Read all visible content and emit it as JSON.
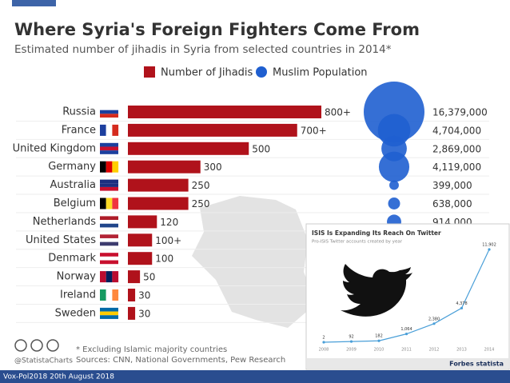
{
  "chart_data": [
    {
      "type": "bar",
      "title": "Where Syria's Foreign Fighters Come From",
      "subtitle": "Estimated number of jihadis in Syria from selected countries in 2014*",
      "categories": [
        "Russia",
        "France",
        "United Kingdom",
        "Germany",
        "Australia",
        "Belgium",
        "Netherlands",
        "United States",
        "Denmark",
        "Norway",
        "Ireland",
        "Sweden"
      ],
      "series": [
        {
          "name": "Number of Jihadis",
          "color": "#b0121b",
          "type": "bar",
          "values": [
            800,
            700,
            500,
            300,
            250,
            250,
            120,
            100,
            100,
            50,
            30,
            30
          ],
          "value_labels": [
            "800+",
            "700+",
            "500",
            "300",
            "250",
            "250",
            "120",
            "100+",
            "100",
            "50",
            "30",
            "30"
          ]
        },
        {
          "name": "Muslim Population",
          "color": "#1f5fd0",
          "type": "bubble",
          "values": [
            16379000,
            4704000,
            2869000,
            4119000,
            399000,
            638000,
            914000
          ],
          "value_labels": [
            "16,379,000",
            "4,704,000",
            "2,869,000",
            "4,119,000",
            "399,000",
            "638,000",
            "914,000"
          ]
        }
      ],
      "legend": "top"
    },
    {
      "type": "line",
      "title": "ISIS Is Expanding Its Reach On Twitter",
      "subtitle": "Pro-ISIS Twitter accounts created by year",
      "categories": [
        "2008",
        "2009",
        "2010",
        "2011",
        "2012",
        "2013",
        "2014"
      ],
      "series": [
        {
          "name": null,
          "color": "#4a9fd8",
          "values": [
            2,
            92,
            182,
            1064,
            2380,
            4378,
            11902
          ],
          "value_labels": [
            "2",
            "92",
            "182",
            "1,064",
            "2,380",
            "4,378",
            "11,902"
          ]
        }
      ],
      "brand": "Forbes statista"
    }
  ],
  "footer": {
    "note": "* Excluding Islamic majority countries",
    "sources": "Sources: CNN, National Governments, Pew Research",
    "handle": "@StatistaCharts",
    "slide": "Vox-Pol2018 20th August 2018"
  }
}
